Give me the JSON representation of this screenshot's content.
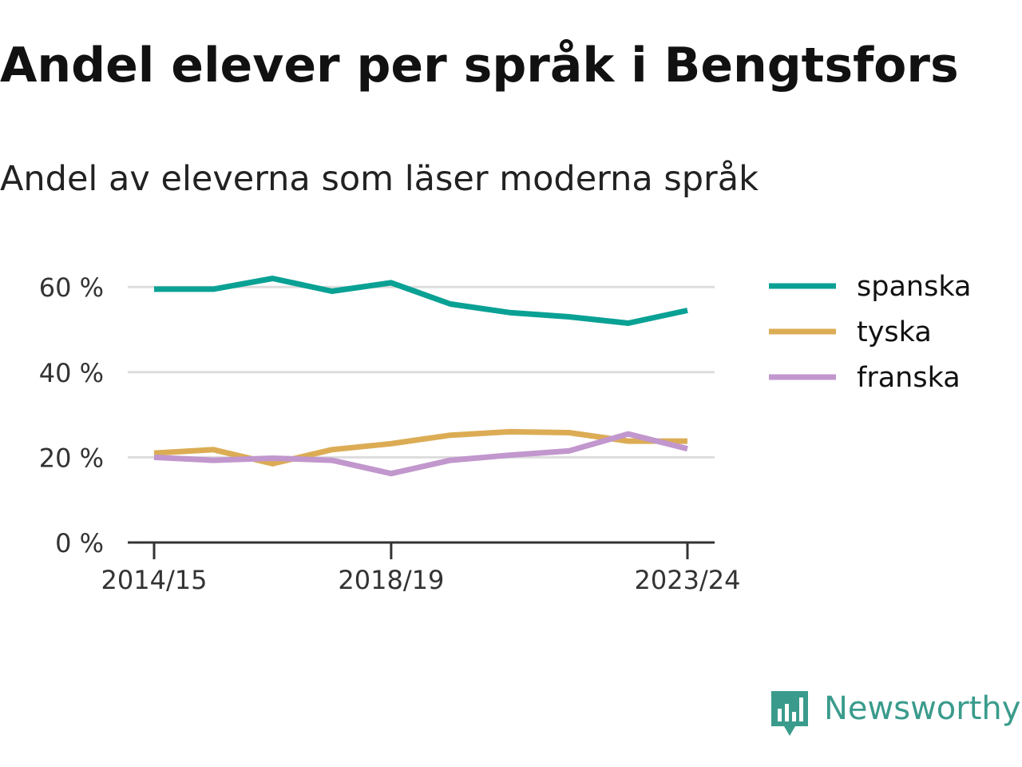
{
  "title": "Andel elever per språk i Bengtsfors",
  "subtitle": "Andel av eleverna som läser moderna språk",
  "brand": "Newsworthy",
  "chart_data": {
    "type": "line",
    "x": [
      "2014/15",
      "2015/16",
      "2016/17",
      "2017/18",
      "2018/19",
      "2019/20",
      "2020/21",
      "2021/22",
      "2022/23",
      "2023/24"
    ],
    "x_tick_labels": [
      "2014/15",
      "2018/19",
      "2023/24"
    ],
    "y_ticks": [
      0,
      20,
      40,
      60
    ],
    "y_tick_labels": [
      "0 %",
      "20 %",
      "40 %",
      "60 %"
    ],
    "ylim": [
      0,
      65
    ],
    "grid": true,
    "legend_position": "right",
    "series": [
      {
        "name": "spanska",
        "color": "#0aa195",
        "values": [
          59.5,
          59.5,
          62,
          59,
          61,
          56,
          54,
          53,
          51.5,
          54.5
        ]
      },
      {
        "name": "tyska",
        "color": "#dcac55",
        "values": [
          21,
          21.8,
          18.5,
          21.8,
          23.2,
          25.2,
          26,
          25.8,
          23.8,
          23.8
        ]
      },
      {
        "name": "franska",
        "color": "#c197cd",
        "values": [
          20,
          19.3,
          19.8,
          19.3,
          16.2,
          19.3,
          20.5,
          21.5,
          25.5,
          22
        ]
      }
    ]
  }
}
